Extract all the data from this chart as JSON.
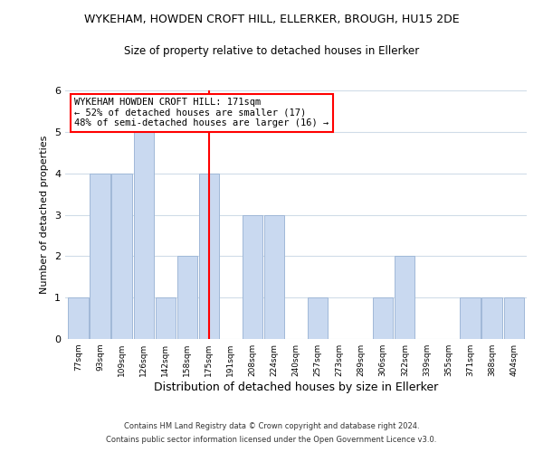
{
  "title": "WYKEHAM, HOWDEN CROFT HILL, ELLERKER, BROUGH, HU15 2DE",
  "subtitle": "Size of property relative to detached houses in Ellerker",
  "xlabel": "Distribution of detached houses by size in Ellerker",
  "ylabel": "Number of detached properties",
  "bar_labels": [
    "77sqm",
    "93sqm",
    "109sqm",
    "126sqm",
    "142sqm",
    "158sqm",
    "175sqm",
    "191sqm",
    "208sqm",
    "224sqm",
    "240sqm",
    "257sqm",
    "273sqm",
    "289sqm",
    "306sqm",
    "322sqm",
    "339sqm",
    "355sqm",
    "371sqm",
    "388sqm",
    "404sqm"
  ],
  "bar_values": [
    1,
    4,
    4,
    5,
    1,
    2,
    4,
    0,
    3,
    3,
    0,
    1,
    0,
    0,
    1,
    2,
    0,
    0,
    1,
    1,
    1
  ],
  "bar_color": "#c9d9f0",
  "bar_edge_color": "#a0b8d8",
  "redline_index": 6,
  "annotation_title": "WYKEHAM HOWDEN CROFT HILL: 171sqm",
  "annotation_line1": "← 52% of detached houses are smaller (17)",
  "annotation_line2": "48% of semi-detached houses are larger (16) →",
  "ylim": [
    0,
    6
  ],
  "yticks": [
    0,
    1,
    2,
    3,
    4,
    5,
    6
  ],
  "footer_line1": "Contains HM Land Registry data © Crown copyright and database right 2024.",
  "footer_line2": "Contains public sector information licensed under the Open Government Licence v3.0.",
  "background_color": "#ffffff",
  "grid_color": "#d0dce8"
}
